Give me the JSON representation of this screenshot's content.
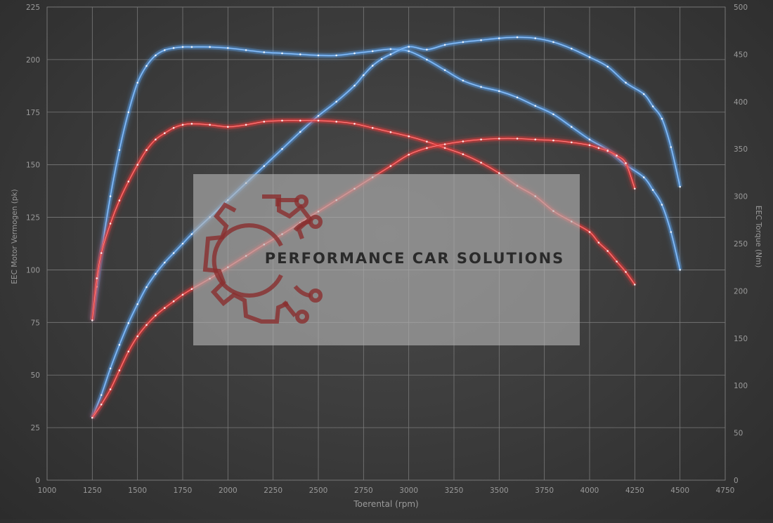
{
  "chart_data": {
    "type": "line",
    "xlabel": "Toerental (rpm)",
    "ylabel_left": "EEC Motor Vermogen (pk)",
    "ylabel_right": "EEC Torque (Nm)",
    "xlim": [
      1000,
      4750
    ],
    "xticks": [
      1000,
      1250,
      1500,
      1750,
      2000,
      2250,
      2500,
      2750,
      3000,
      3250,
      3500,
      3750,
      4000,
      4250,
      4500,
      4750
    ],
    "ylim_left": [
      0,
      225
    ],
    "yticks_left": [
      0,
      25,
      50,
      75,
      100,
      125,
      150,
      175,
      200,
      225
    ],
    "ylim_right": [
      0,
      500
    ],
    "yticks_right": [
      0,
      50,
      100,
      150,
      200,
      250,
      300,
      350,
      400,
      450,
      500
    ],
    "grid": true,
    "legend": "none",
    "colors": {
      "tuned": "#5a9de6",
      "stock": "#e63a3a",
      "grid": "#7a7a7a",
      "axis_text": "#9a9a9a"
    },
    "series": [
      {
        "axis": "left",
        "color_key": "tuned",
        "x": [
          1250,
          1275,
          1300,
          1350,
          1400,
          1450,
          1500,
          1550,
          1600,
          1650,
          1700,
          1750,
          1800,
          1900,
          2000,
          2100,
          2200,
          2300,
          2400,
          2500,
          2600,
          2700,
          2800,
          2900,
          3000,
          3100,
          3200,
          3300,
          3400,
          3500,
          3600,
          3700,
          3800,
          3900,
          4000,
          4100,
          4200,
          4300,
          4350,
          4400,
          4450,
          4500
        ],
        "values": [
          76,
          92,
          108,
          135,
          157,
          175,
          189,
          197,
          202,
          204.5,
          205.5,
          206,
          206,
          206,
          205.5,
          204.5,
          203.5,
          203,
          202.5,
          202,
          202,
          203,
          204,
          205,
          204,
          200,
          195,
          190,
          187,
          185,
          182,
          178,
          174,
          168,
          162,
          157,
          150,
          144,
          138,
          131,
          118,
          100
        ]
      },
      {
        "axis": "right",
        "color_key": "tuned",
        "x": [
          1250,
          1300,
          1350,
          1400,
          1450,
          1500,
          1550,
          1600,
          1650,
          1700,
          1750,
          1800,
          1900,
          2000,
          2100,
          2200,
          2300,
          2400,
          2500,
          2600,
          2700,
          2750,
          2800,
          2850,
          2900,
          3000,
          3100,
          3200,
          3300,
          3400,
          3500,
          3600,
          3700,
          3800,
          3900,
          4000,
          4100,
          4200,
          4300,
          4350,
          4400,
          4450,
          4500
        ],
        "values": [
          66,
          90,
          118,
          143,
          166,
          186,
          204,
          218,
          230,
          240,
          250,
          260,
          278,
          296,
          314,
          332,
          350,
          368,
          385,
          400,
          417,
          428,
          438,
          445,
          450,
          458,
          455,
          460,
          463,
          465,
          467,
          468,
          467,
          463,
          456,
          447,
          437,
          420,
          408,
          395,
          382,
          352,
          310
        ]
      },
      {
        "axis": "left",
        "color_key": "stock",
        "x": [
          1250,
          1275,
          1300,
          1350,
          1400,
          1450,
          1500,
          1550,
          1600,
          1650,
          1700,
          1750,
          1800,
          1900,
          2000,
          2100,
          2200,
          2300,
          2400,
          2500,
          2600,
          2700,
          2800,
          2900,
          3000,
          3100,
          3200,
          3300,
          3400,
          3500,
          3600,
          3700,
          3800,
          3900,
          4000,
          4050,
          4100,
          4150,
          4200,
          4250
        ],
        "values": [
          76,
          96,
          108,
          122,
          133,
          142,
          150,
          157,
          162,
          165,
          167.5,
          169,
          169.5,
          169,
          168,
          169,
          170.5,
          171,
          171,
          171,
          170.5,
          169.5,
          167.5,
          165.5,
          163.5,
          161,
          158,
          155,
          151,
          146,
          140,
          135,
          128,
          123,
          118,
          113,
          109,
          104,
          99,
          93
        ]
      },
      {
        "axis": "right",
        "color_key": "stock",
        "x": [
          1250,
          1300,
          1350,
          1400,
          1450,
          1500,
          1550,
          1600,
          1650,
          1700,
          1750,
          1800,
          1900,
          2000,
          2100,
          2200,
          2300,
          2400,
          2500,
          2600,
          2700,
          2800,
          2900,
          3000,
          3100,
          3200,
          3300,
          3400,
          3500,
          3600,
          3700,
          3800,
          3900,
          4000,
          4050,
          4100,
          4150,
          4200,
          4250
        ],
        "values": [
          66,
          80,
          96,
          116,
          136,
          152,
          164,
          174,
          182,
          189,
          196,
          202,
          213,
          225,
          237,
          249,
          260,
          272,
          284,
          296,
          308,
          320,
          332,
          344,
          351,
          355,
          358,
          360,
          361,
          361,
          360,
          359,
          357,
          354,
          351,
          348,
          343,
          335,
          308
        ]
      }
    ]
  },
  "watermark": {
    "text": "PERFORMANCE CAR SOLUTIONS"
  }
}
